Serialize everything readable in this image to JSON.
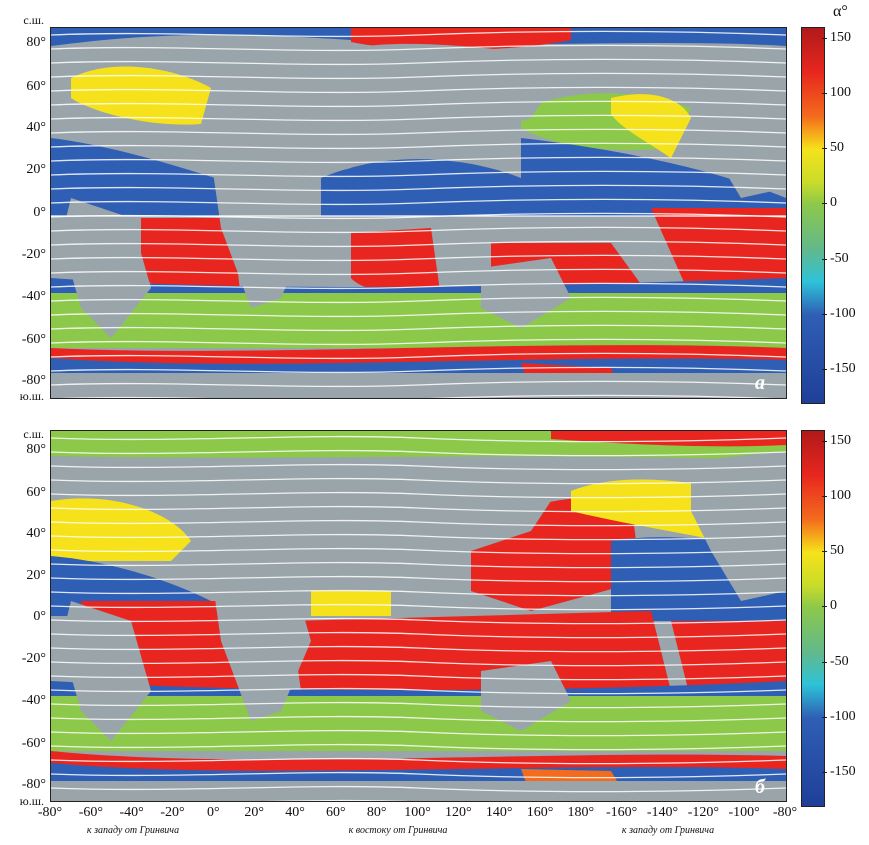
{
  "colorbar": {
    "title": "α°",
    "ticks": [
      "150",
      "100",
      "50",
      "0",
      "-50",
      "-100",
      "-150"
    ],
    "tick_values": [
      150,
      100,
      50,
      0,
      -50,
      -100,
      -150
    ],
    "range": [
      -180,
      160
    ],
    "stops": [
      {
        "value": 160,
        "color": "#b01a1a"
      },
      {
        "value": 120,
        "color": "#e8261f"
      },
      {
        "value": 80,
        "color": "#f36b1c"
      },
      {
        "value": 50,
        "color": "#f6e21a"
      },
      {
        "value": 20,
        "color": "#c9dc2a"
      },
      {
        "value": 0,
        "color": "#8cc84a"
      },
      {
        "value": -40,
        "color": "#63b98a"
      },
      {
        "value": -70,
        "color": "#2ec2d8"
      },
      {
        "value": -100,
        "color": "#2f5fb5"
      },
      {
        "value": -180,
        "color": "#1f3f98"
      }
    ]
  },
  "map": {
    "latitude_labels": [
      "80°",
      "60°",
      "40°",
      "20°",
      "0°",
      "-20°",
      "-40°",
      "-60°",
      "-80°"
    ],
    "latitude_values": [
      80,
      60,
      40,
      20,
      0,
      -20,
      -40,
      -60,
      -80
    ],
    "hemisphere_north": "с.ш.",
    "hemisphere_south": "ю.ш.",
    "longitude_labels": [
      "-80°",
      "-60°",
      "-40°",
      "-20°",
      "0°",
      "20°",
      "40°",
      "60°",
      "80°",
      "100°",
      "120°",
      "140°",
      "160°",
      "180°",
      "-160°",
      "-140°",
      "-120°",
      "-100°",
      "-80°"
    ],
    "direction_labels": [
      "к западу от Гринвича",
      "к востоку от Гринвича",
      "к западу от Гринвича"
    ],
    "land_color": "#9aa4ab",
    "streamline_color": "#ffffff"
  },
  "panels": [
    {
      "label": "а"
    },
    {
      "label": "б"
    }
  ]
}
